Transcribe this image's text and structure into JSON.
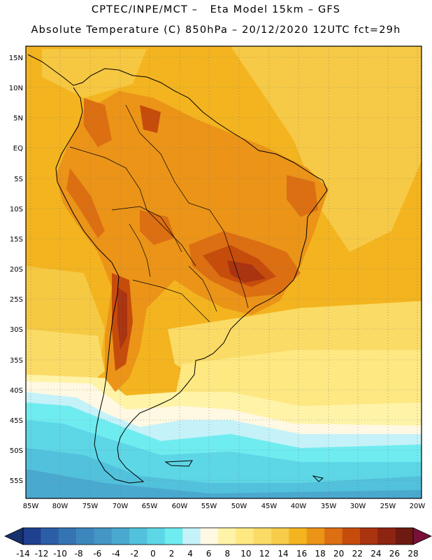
{
  "header": {
    "line1": "CPTEC/INPE/MCT –   Eta Model 15km – GFS",
    "line2": "Absolute Temperature (C) 850hPa – 20/12/2020 12UTC fct=29h"
  },
  "map": {
    "lat_labels": [
      "15N",
      "10N",
      "5N",
      "EQ",
      "5S",
      "10S",
      "15S",
      "20S",
      "25S",
      "30S",
      "35S",
      "40S",
      "45S",
      "50S",
      "55S"
    ],
    "lon_labels": [
      "85W",
      "80W",
      "75W",
      "70W",
      "65W",
      "60W",
      "55W",
      "50W",
      "45W",
      "40W",
      "35W",
      "30W",
      "25W",
      "20W"
    ]
  },
  "colorbar": {
    "values": [
      "-14",
      "-12",
      "-10",
      "-8",
      "-6",
      "-4",
      "-2",
      "0",
      "2",
      "4",
      "6",
      "8",
      "10",
      "12",
      "14",
      "16",
      "18",
      "20",
      "22",
      "24",
      "26",
      "28"
    ],
    "colors": [
      "#1f3f8f",
      "#2b5ea6",
      "#3574b3",
      "#3d86bd",
      "#4496c5",
      "#4aa9cf",
      "#52c1dc",
      "#5dd6e6",
      "#6fecf0",
      "#c4f2f8",
      "#fff8e2",
      "#fff3a8",
      "#fde882",
      "#fadb66",
      "#f6cc4a",
      "#f3b41f",
      "#eb9418",
      "#dc6f12",
      "#c64c0c",
      "#aa3310",
      "#8d2311",
      "#6e1a12"
    ],
    "low_extend_color": "#17306e",
    "high_extend_color": "#7a0f3a"
  }
}
